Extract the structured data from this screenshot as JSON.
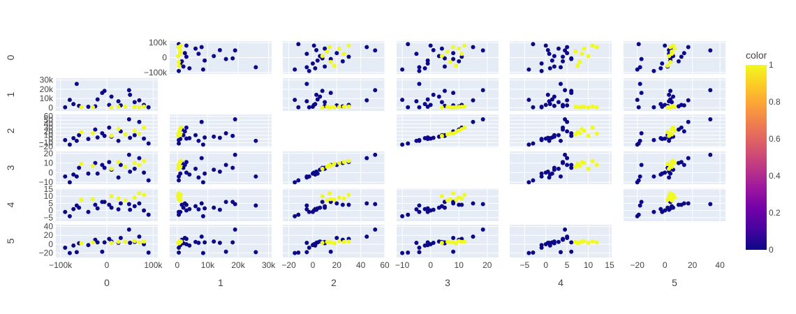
{
  "chart_data": {
    "type": "scatter",
    "subtype": "scatter-matrix",
    "dimensions": [
      "0",
      "1",
      "2",
      "3",
      "4",
      "5"
    ],
    "diagonal_visible": false,
    "colorbar": {
      "title": "color",
      "range": [
        0,
        1
      ],
      "ticks": [
        "0",
        "0.2",
        "0.4",
        "0.6",
        "0.8",
        "1"
      ],
      "colorscale": [
        "#0d0887",
        "#46039f",
        "#7201a8",
        "#9c179e",
        "#bd3786",
        "#d8576b",
        "#ed7953",
        "#fb9f3a",
        "#fdca26",
        "#f0f921"
      ]
    },
    "axes": [
      {
        "dim": "0",
        "range": [
          -110000,
          110000
        ],
        "ticks": [
          -100000,
          0,
          100000
        ],
        "tick_labels": [
          "−100k",
          "0",
          "100k"
        ]
      },
      {
        "dim": "1",
        "range": [
          -2500,
          31000
        ],
        "ticks": [
          0,
          10000,
          20000,
          30000
        ],
        "tick_labels": [
          "0",
          "10k",
          "20k",
          "30k"
        ]
      },
      {
        "dim": "2",
        "range": [
          -25,
          60
        ],
        "ticks": [
          -20,
          0,
          20,
          40,
          60
        ],
        "tick_labels": [
          "−20",
          "0",
          "20",
          "40",
          "60"
        ]
      },
      {
        "dim": "3",
        "range": [
          -12,
          24
        ],
        "ticks": [
          -10,
          0,
          10,
          20
        ],
        "tick_labels": [
          "−10",
          "0",
          "10",
          "20"
        ]
      },
      {
        "dim": "4",
        "range": [
          -8.5,
          15.5
        ],
        "ticks": [
          -5,
          0,
          5,
          10,
          15
        ],
        "tick_labels": [
          "−5",
          "0",
          "5",
          "10",
          "15"
        ]
      },
      {
        "dim": "5",
        "range": [
          -30,
          44
        ],
        "ticks": [
          -20,
          0,
          20,
          40
        ],
        "tick_labels": [
          "−20",
          "0",
          "20",
          "40"
        ]
      }
    ],
    "y_tick_labels": {
      "0": {
        "ticks": [
          -100000,
          0,
          100000
        ],
        "labels": [
          "−100k",
          "0",
          "100k"
        ]
      },
      "1": {
        "ticks": [
          0,
          10000,
          20000,
          30000
        ],
        "labels": [
          "0",
          "10k",
          "20k",
          "30k"
        ]
      },
      "2": {
        "ticks": [
          -20,
          -10,
          0,
          10,
          20,
          30,
          40,
          50,
          60
        ],
        "labels": [
          "−20",
          "−10",
          "0",
          "10",
          "20",
          "30",
          "40",
          "50",
          "60"
        ]
      },
      "3": {
        "ticks": [
          -10,
          0,
          10,
          20
        ],
        "labels": [
          "−10",
          "0",
          "10",
          "20"
        ]
      },
      "4": {
        "ticks": [
          -5,
          0,
          5,
          10,
          15
        ],
        "labels": [
          "−5",
          "0",
          "5",
          "10",
          "15"
        ]
      },
      "5": {
        "ticks": [
          -20,
          0,
          20,
          40
        ],
        "labels": [
          "−20",
          "0",
          "20",
          "40"
        ]
      }
    },
    "y_ranges": {
      "0": [
        -110000,
        110000
      ],
      "1": [
        -3500,
        32000
      ],
      "2": [
        -22,
        65
      ],
      "3": [
        -12,
        22
      ],
      "4": [
        -7.5,
        15.5
      ],
      "5": [
        -30,
        44
      ]
    },
    "grid": true,
    "legend": "colorbar-right",
    "points": [
      [
        -65000,
        25800,
        -5,
        -4,
        3.5,
        -18,
        0
      ],
      [
        -20000,
        9000,
        4,
        -1,
        1.5,
        4,
        0
      ],
      [
        60000,
        6000,
        10,
        4,
        3,
        5,
        0
      ],
      [
        25000,
        7000,
        -5,
        -5,
        0.8,
        3,
        0
      ],
      [
        -5000,
        18200,
        8,
        5,
        6,
        4,
        0
      ],
      [
        48000,
        19000,
        52,
        18.5,
        4.5,
        33,
        0
      ],
      [
        -72000,
        4000,
        2,
        -2,
        1,
        -3,
        0
      ],
      [
        10000,
        12000,
        6,
        3,
        2,
        6,
        0
      ],
      [
        80000,
        3000,
        1,
        0,
        0,
        0,
        0
      ],
      [
        -40000,
        1000,
        0,
        -1,
        -1,
        -2,
        0
      ],
      [
        30000,
        2500,
        20,
        8,
        5,
        14,
        0
      ],
      [
        -90000,
        500,
        -3,
        -4,
        -1,
        -8,
        0
      ],
      [
        -10000,
        16000,
        15,
        8,
        6,
        -17,
        0
      ],
      [
        70000,
        8000,
        45,
        15,
        5,
        17,
        0
      ],
      [
        -60000,
        2000,
        10,
        5,
        2,
        2,
        0
      ],
      [
        50000,
        14000,
        3,
        1,
        0.5,
        3,
        0
      ],
      [
        -25000,
        1500,
        25,
        10,
        4,
        10,
        0
      ],
      [
        90000,
        500,
        -12,
        -8,
        -3,
        -19,
        0
      ],
      [
        5000,
        3000,
        30,
        11,
        4,
        12,
        0
      ],
      [
        -80000,
        8500,
        -15,
        -10,
        -4,
        -20,
        0
      ],
      [
        40000,
        1000,
        12,
        6,
        7,
        5,
        1
      ],
      [
        -30000,
        500,
        15,
        7,
        8,
        4,
        1
      ],
      [
        60000,
        800,
        22,
        10,
        9,
        7,
        1
      ],
      [
        10000,
        300,
        8,
        4,
        10,
        3,
        1
      ],
      [
        80000,
        1200,
        30,
        12,
        11,
        6,
        1
      ],
      [
        -55000,
        600,
        18,
        9,
        7.5,
        2,
        1
      ],
      [
        25000,
        900,
        26,
        11,
        8.5,
        5,
        1
      ],
      [
        70000,
        400,
        14,
        8,
        12,
        4,
        1
      ]
    ]
  }
}
